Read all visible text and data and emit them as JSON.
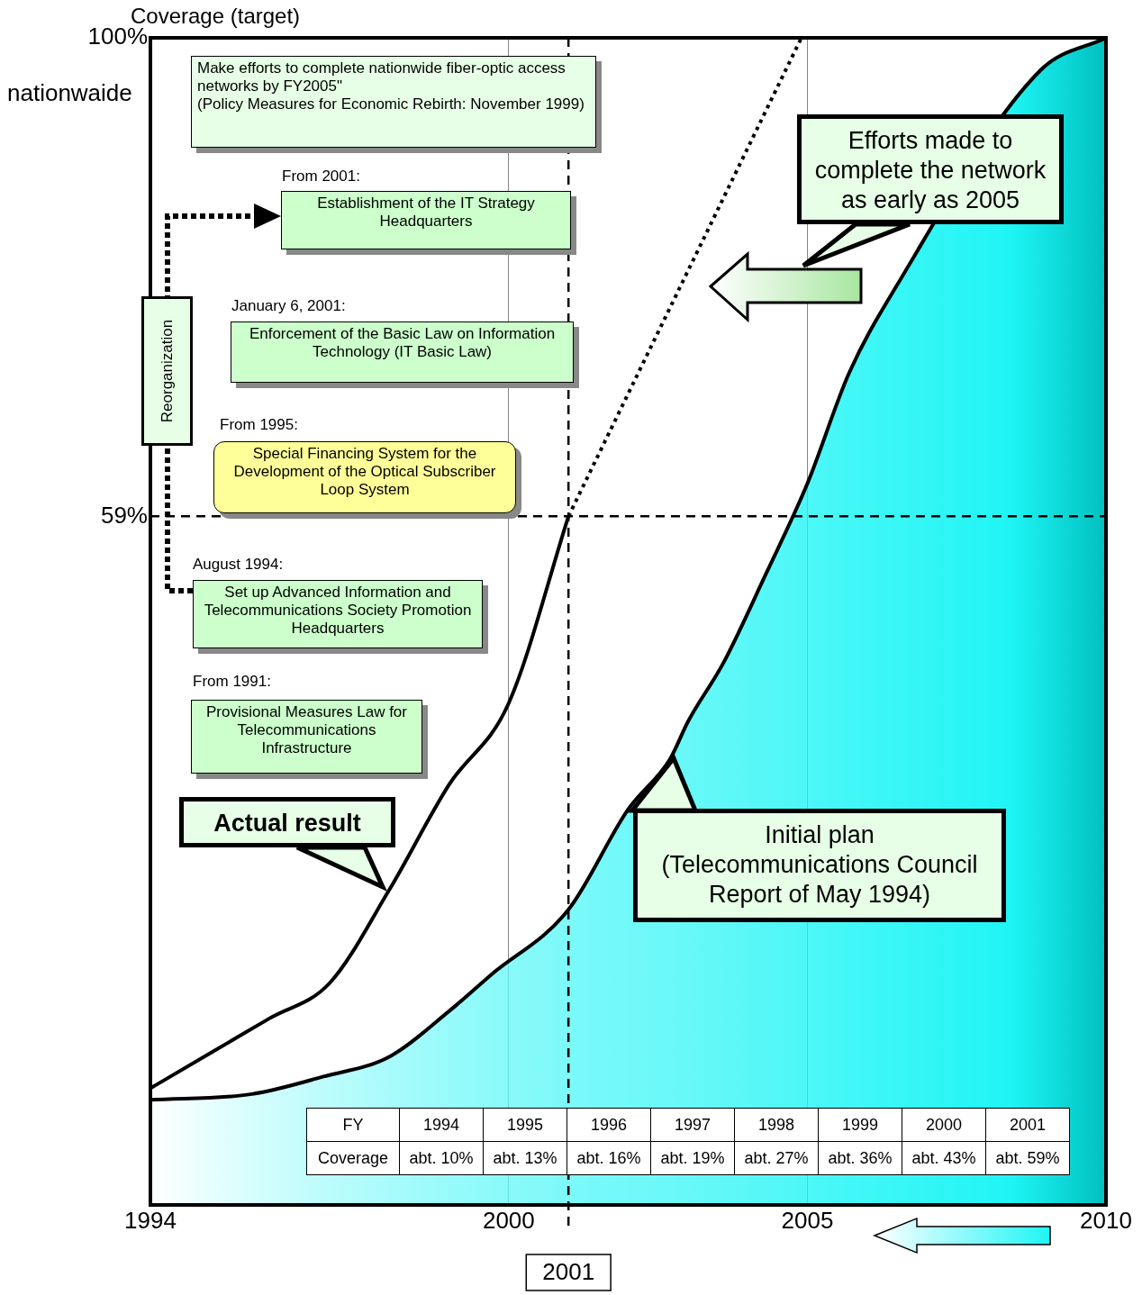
{
  "chart_data": {
    "type": "line",
    "ylabel": "Coverage (target)",
    "xlim": [
      1994,
      2010
    ],
    "xticks": [
      1994,
      2000,
      2005,
      2010
    ],
    "ylim": [
      0,
      100
    ],
    "yticks": [
      {
        "value": 59,
        "label": "59%"
      },
      {
        "value": 100,
        "label": "100%"
      }
    ],
    "grid": "x",
    "legend": "bottom right",
    "marker": "none",
    "series": [
      {
        "name": "Initial plan\n(Telecommunications Council\nReport of May 1994)",
        "type": "area",
        "color": "#1ff5f5",
        "x": [
          1994,
          1995.7,
          1996.9,
          1998,
          1999,
          1999.7,
          2001,
          2002,
          2002.7,
          2003,
          2003.6,
          2004.3,
          2005,
          2005.7,
          2006.5,
          2008.9,
          2010
        ],
        "values": [
          9,
          9.5,
          11,
          12.7,
          16.6,
          19.7,
          25.3,
          33.9,
          38.2,
          41.4,
          46.5,
          54,
          61.8,
          71.3,
          78.8,
          97.2,
          100
        ]
      },
      {
        "name": "Actual result",
        "type": "line",
        "color": "#000000",
        "x": [
          1994,
          1995,
          1996,
          1997,
          1998,
          1999,
          2000,
          2001
        ],
        "values": [
          10,
          13,
          16,
          19,
          27,
          36,
          43,
          59
        ]
      },
      {
        "name": "Efforts made to complete the network as early as 2005",
        "type": "line",
        "line_style": "dotted",
        "color": "#000000",
        "x": [
          2001,
          2004.9
        ],
        "values": [
          59,
          100
        ]
      }
    ],
    "ref_lines": [
      {
        "axis": "y",
        "value": 59,
        "line_style": "dashed",
        "color": "#000000"
      },
      {
        "axis": "x",
        "value": 2001,
        "label": "2001",
        "line_style": "dashed",
        "color": "#000000"
      }
    ],
    "annotations": [
      "nationwaide",
      "Make efforts to complete nationwide fiber-optic access networks by FY2005\"\n(Policy Measures for Economic Rebirth: November 1999)",
      "From 2001:",
      "Establishment of the IT Strategy Headquarters",
      "January 6, 2001:",
      "Enforcement of the Basic Law on Information Technology (IT Basic Law)",
      "From 1995:",
      "Special Financing System for the Development of the Optical Subscriber Loop System",
      "August 1994:",
      "Set up Advanced Information and Telecommunications Society Promotion Headquarters",
      "From 1991:",
      "Provisional Measures Law for Telecommunications Infrastructure",
      "Reorganization",
      "FY",
      "1994",
      "1995",
      "1996",
      "1997",
      "1998",
      "1999",
      "2000",
      "2001",
      "Coverage",
      "abt. 10%",
      "abt. 13%",
      "abt. 16%",
      "abt. 19%",
      "abt. 27%",
      "abt. 36%",
      "abt. 43%",
      "abt. 59%"
    ]
  }
}
